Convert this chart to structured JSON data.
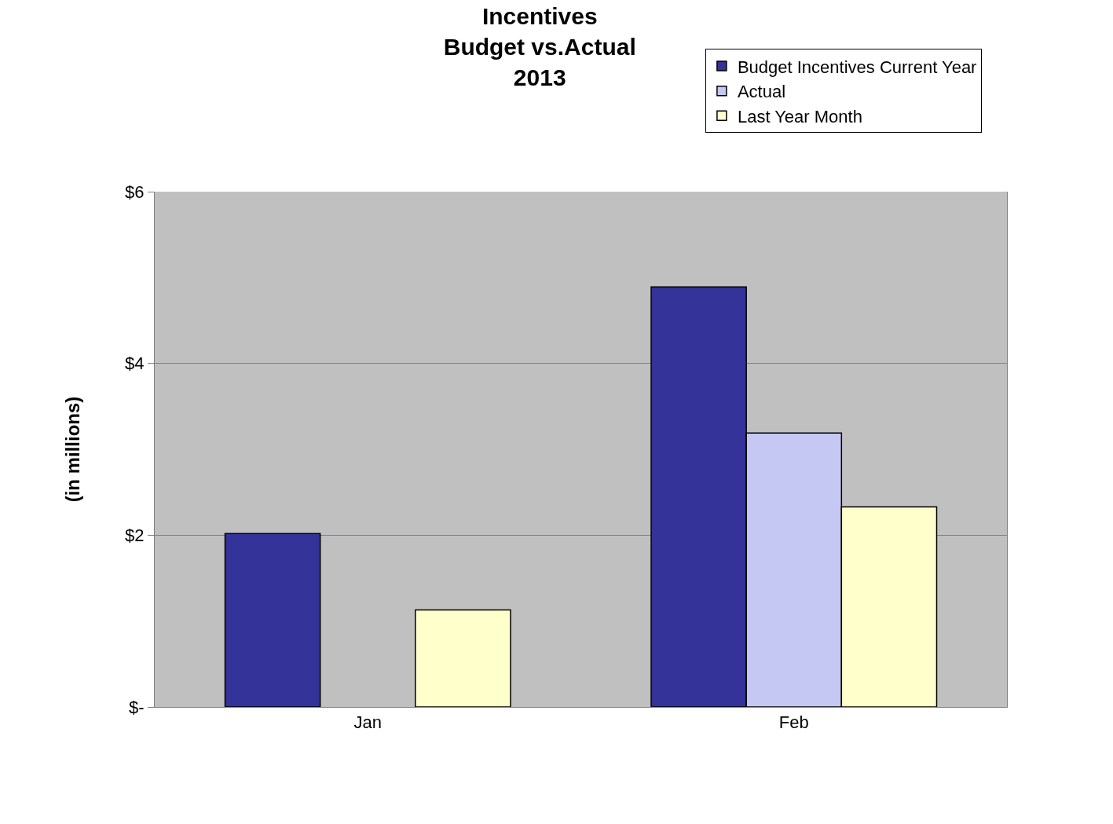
{
  "chart_data": {
    "type": "bar",
    "title": "Incentives\nBudget vs.Actual\n2013",
    "ylabel": "(in millions)",
    "categories": [
      "Jan",
      "Feb"
    ],
    "series": [
      {
        "name": "Budget Incentives Current Year",
        "color": "#333399",
        "values": [
          2.02,
          4.89
        ]
      },
      {
        "name": "Actual",
        "color": "#c4c8f2",
        "values": [
          null,
          3.19
        ]
      },
      {
        "name": "Last Year Month",
        "color": "#ffffcc",
        "values": [
          1.13,
          2.33
        ]
      }
    ],
    "ylim": [
      0,
      6
    ],
    "yticks": [
      {
        "value": 0,
        "label": "$-"
      },
      {
        "value": 2,
        "label": "$2"
      },
      {
        "value": 4,
        "label": "$4"
      },
      {
        "value": 6,
        "label": "$6"
      }
    ],
    "grid": "y",
    "legend": "top right"
  }
}
